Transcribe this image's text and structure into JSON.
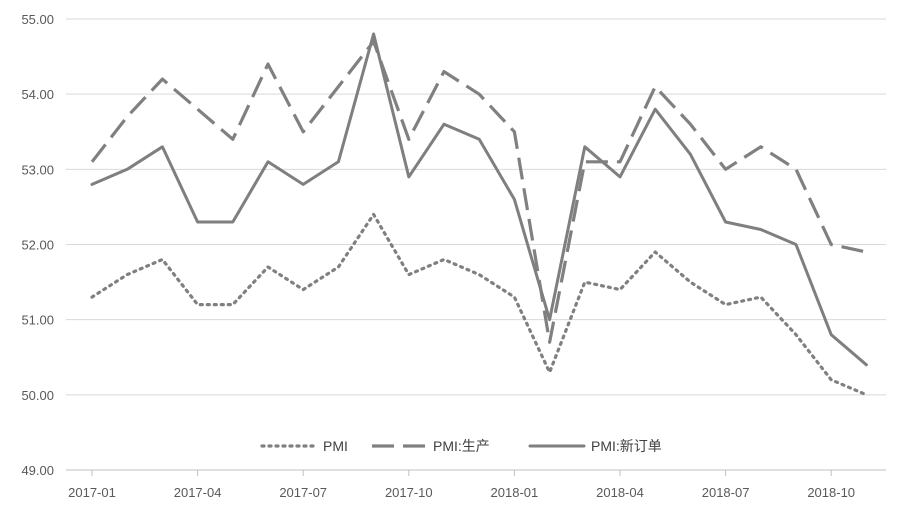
{
  "chart_data": {
    "type": "line",
    "title": "",
    "xlabel": "",
    "ylabel": "",
    "x": [
      "2017-01",
      "2017-02",
      "2017-03",
      "2017-04",
      "2017-05",
      "2017-06",
      "2017-07",
      "2017-08",
      "2017-09",
      "2017-10",
      "2017-11",
      "2017-12",
      "2018-01",
      "2018-02",
      "2018-03",
      "2018-04",
      "2018-05",
      "2018-06",
      "2018-07",
      "2018-08",
      "2018-09",
      "2018-10",
      "2018-11",
      "2018-12"
    ],
    "x_tick_labels": [
      "2017-01",
      "2017-04",
      "2017-07",
      "2017-10",
      "2018-01",
      "2018-04",
      "2018-07",
      "2018-10"
    ],
    "x_tick_every": 3,
    "ylim": [
      49.0,
      55.0
    ],
    "y_ticks": [
      "49.00",
      "50.00",
      "51.00",
      "52.00",
      "53.00",
      "54.00",
      "55.00"
    ],
    "grid": "horizontal",
    "legend_position": "bottom-inside",
    "series": [
      {
        "name": "PMI",
        "style": "dotted",
        "color": "#808080",
        "values": [
          51.3,
          51.6,
          51.8,
          51.2,
          51.2,
          51.7,
          51.4,
          51.7,
          52.4,
          51.6,
          51.8,
          51.6,
          51.3,
          50.3,
          51.5,
          51.4,
          51.9,
          51.5,
          51.2,
          51.3,
          50.8,
          50.2,
          50.0,
          null
        ]
      },
      {
        "name": "PMI:生产",
        "style": "dashed",
        "color": "#808080",
        "values": [
          53.1,
          53.7,
          54.2,
          53.8,
          53.4,
          54.4,
          53.5,
          54.1,
          54.7,
          53.4,
          54.3,
          54.0,
          53.5,
          50.7,
          53.1,
          53.1,
          54.1,
          53.6,
          53.0,
          53.3,
          53.0,
          52.0,
          51.9,
          null
        ]
      },
      {
        "name": "PMI:新订单",
        "style": "solid",
        "color": "#7f7f7f",
        "values": [
          52.8,
          53.0,
          53.3,
          52.3,
          52.3,
          53.1,
          52.8,
          53.1,
          54.8,
          52.9,
          53.6,
          53.4,
          52.6,
          51.0,
          53.3,
          52.9,
          53.8,
          53.2,
          52.3,
          52.2,
          52.0,
          50.8,
          50.4,
          null
        ]
      }
    ]
  }
}
